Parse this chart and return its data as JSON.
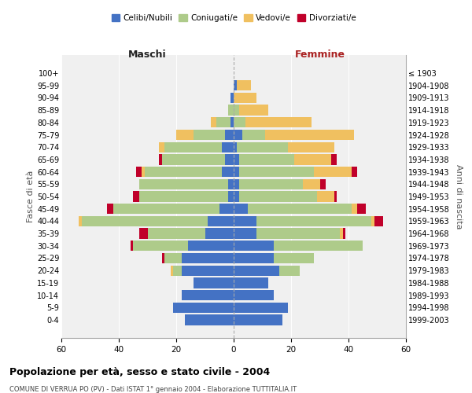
{
  "age_groups": [
    "0-4",
    "5-9",
    "10-14",
    "15-19",
    "20-24",
    "25-29",
    "30-34",
    "35-39",
    "40-44",
    "45-49",
    "50-54",
    "55-59",
    "60-64",
    "65-69",
    "70-74",
    "75-79",
    "80-84",
    "85-89",
    "90-94",
    "95-99",
    "100+"
  ],
  "birth_years": [
    "1999-2003",
    "1994-1998",
    "1989-1993",
    "1984-1988",
    "1979-1983",
    "1974-1978",
    "1969-1973",
    "1964-1968",
    "1959-1963",
    "1954-1958",
    "1949-1953",
    "1944-1948",
    "1939-1943",
    "1934-1938",
    "1929-1933",
    "1924-1928",
    "1919-1923",
    "1914-1918",
    "1909-1913",
    "1904-1908",
    "≤ 1903"
  ],
  "maschi": {
    "celibi": [
      17,
      21,
      18,
      14,
      18,
      18,
      16,
      10,
      9,
      5,
      2,
      2,
      4,
      3,
      4,
      3,
      1,
      0,
      1,
      0,
      0
    ],
    "coniugati": [
      0,
      0,
      0,
      0,
      3,
      6,
      19,
      20,
      44,
      37,
      31,
      31,
      27,
      22,
      20,
      11,
      5,
      2,
      0,
      0,
      0
    ],
    "vedovi": [
      0,
      0,
      0,
      0,
      1,
      0,
      0,
      0,
      1,
      0,
      0,
      0,
      1,
      0,
      2,
      6,
      2,
      0,
      0,
      0,
      0
    ],
    "divorziati": [
      0,
      0,
      0,
      0,
      0,
      1,
      1,
      3,
      0,
      2,
      2,
      0,
      2,
      1,
      0,
      0,
      0,
      0,
      0,
      0,
      0
    ]
  },
  "femmine": {
    "nubili": [
      17,
      19,
      14,
      12,
      16,
      14,
      14,
      8,
      8,
      5,
      2,
      2,
      2,
      2,
      1,
      3,
      0,
      0,
      0,
      1,
      0
    ],
    "coniugate": [
      0,
      0,
      0,
      0,
      7,
      14,
      31,
      29,
      40,
      36,
      27,
      22,
      26,
      19,
      18,
      8,
      4,
      2,
      0,
      0,
      0
    ],
    "vedove": [
      0,
      0,
      0,
      0,
      0,
      0,
      0,
      1,
      1,
      2,
      6,
      6,
      13,
      13,
      16,
      31,
      23,
      10,
      8,
      5,
      0
    ],
    "divorziate": [
      0,
      0,
      0,
      0,
      0,
      0,
      0,
      1,
      3,
      3,
      1,
      2,
      2,
      2,
      0,
      0,
      0,
      0,
      0,
      0,
      0
    ]
  },
  "colors": {
    "celibi_nubili": "#4472C4",
    "coniugati_e": "#AECB8A",
    "vedovi_e": "#F0C060",
    "divorziati_e": "#C0002A"
  },
  "xlim": 60,
  "title": "Popolazione per età, sesso e stato civile - 2004",
  "subtitle": "COMUNE DI VERRUA PO (PV) - Dati ISTAT 1° gennaio 2004 - Elaborazione TUTTITALIA.IT",
  "xlabel_left": "Maschi",
  "xlabel_right": "Femmine",
  "ylabel_left": "Fasce di età",
  "ylabel_right": "Anni di nascita",
  "legend_labels": [
    "Celibi/Nubili",
    "Coniugati/e",
    "Vedovi/e",
    "Divorziati/e"
  ],
  "background_color": "#ffffff",
  "plot_bg": "#f0f0f0",
  "bar_height": 0.85
}
